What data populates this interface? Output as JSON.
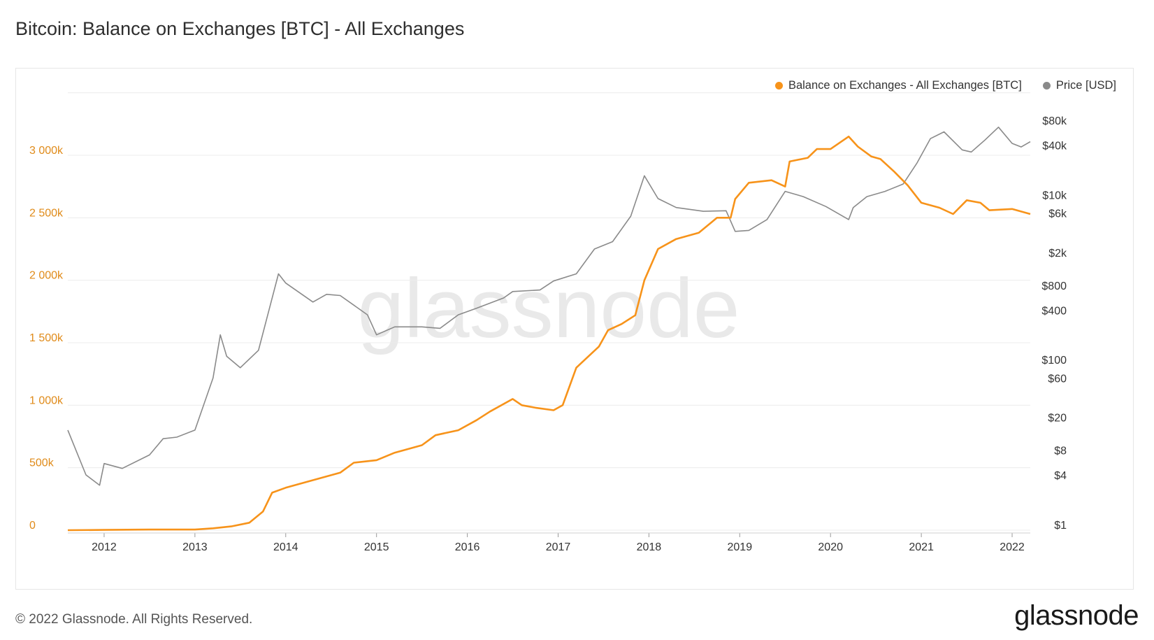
{
  "title": "Bitcoin: Balance on Exchanges [BTC] - All Exchanges",
  "footer": "© 2022 Glassnode. All Rights Reserved.",
  "brand": "glassnode",
  "watermark": "glassnode",
  "colors": {
    "balance": "#f7931a",
    "price": "#8a8a8a",
    "left_axis": "#e08b1a"
  },
  "chart_data": {
    "type": "line",
    "grid": true,
    "legend_position": "top-right",
    "x_ticks": [
      "2012",
      "2013",
      "2014",
      "2015",
      "2016",
      "2017",
      "2018",
      "2019",
      "2020",
      "2021",
      "2022"
    ],
    "left_axis": {
      "ticks": [
        "0",
        "500k",
        "1 000k",
        "1 500k",
        "2 000k",
        "2 500k",
        "3 000k"
      ],
      "tick_values": [
        0,
        500000,
        1000000,
        1500000,
        2000000,
        2500000,
        3000000
      ],
      "range": [
        0,
        3500000
      ]
    },
    "right_axis": {
      "scale": "log",
      "ticks": [
        "$1",
        "$4",
        "$8",
        "$20",
        "$60",
        "$100",
        "$400",
        "$800",
        "$2k",
        "$6k",
        "$10k",
        "$40k",
        "$80k"
      ],
      "tick_values": [
        1,
        4,
        8,
        20,
        60,
        100,
        400,
        800,
        2000,
        6000,
        10000,
        40000,
        80000
      ]
    },
    "series": [
      {
        "name": "Balance on Exchanges - All Exchanges [BTC]",
        "axis": "left",
        "points": [
          [
            2011.6,
            0
          ],
          [
            2012.0,
            2000
          ],
          [
            2012.5,
            5000
          ],
          [
            2013.0,
            5000
          ],
          [
            2013.2,
            15000
          ],
          [
            2013.4,
            30000
          ],
          [
            2013.6,
            60000
          ],
          [
            2013.75,
            150000
          ],
          [
            2013.85,
            300000
          ],
          [
            2014.0,
            340000
          ],
          [
            2014.3,
            400000
          ],
          [
            2014.6,
            460000
          ],
          [
            2014.75,
            540000
          ],
          [
            2015.0,
            560000
          ],
          [
            2015.2,
            620000
          ],
          [
            2015.5,
            680000
          ],
          [
            2015.65,
            760000
          ],
          [
            2015.9,
            800000
          ],
          [
            2016.1,
            880000
          ],
          [
            2016.25,
            950000
          ],
          [
            2016.5,
            1050000
          ],
          [
            2016.6,
            1000000
          ],
          [
            2016.75,
            980000
          ],
          [
            2016.95,
            960000
          ],
          [
            2017.05,
            1000000
          ],
          [
            2017.2,
            1300000
          ],
          [
            2017.45,
            1470000
          ],
          [
            2017.55,
            1600000
          ],
          [
            2017.7,
            1650000
          ],
          [
            2017.85,
            1720000
          ],
          [
            2017.95,
            2000000
          ],
          [
            2018.1,
            2250000
          ],
          [
            2018.3,
            2330000
          ],
          [
            2018.55,
            2380000
          ],
          [
            2018.75,
            2500000
          ],
          [
            2018.9,
            2500000
          ],
          [
            2018.95,
            2650000
          ],
          [
            2019.1,
            2780000
          ],
          [
            2019.35,
            2800000
          ],
          [
            2019.5,
            2750000
          ],
          [
            2019.55,
            2950000
          ],
          [
            2019.75,
            2980000
          ],
          [
            2019.85,
            3050000
          ],
          [
            2020.0,
            3050000
          ],
          [
            2020.2,
            3150000
          ],
          [
            2020.3,
            3070000
          ],
          [
            2020.45,
            2990000
          ],
          [
            2020.55,
            2970000
          ],
          [
            2020.7,
            2870000
          ],
          [
            2020.85,
            2760000
          ],
          [
            2021.0,
            2620000
          ],
          [
            2021.2,
            2580000
          ],
          [
            2021.35,
            2530000
          ],
          [
            2021.5,
            2640000
          ],
          [
            2021.65,
            2620000
          ],
          [
            2021.75,
            2560000
          ],
          [
            2022.0,
            2570000
          ],
          [
            2022.2,
            2530000
          ]
        ]
      },
      {
        "name": "Price [USD]",
        "axis": "right",
        "points": [
          [
            2011.6,
            14
          ],
          [
            2011.8,
            4
          ],
          [
            2011.95,
            3
          ],
          [
            2012.0,
            5.5
          ],
          [
            2012.2,
            4.8
          ],
          [
            2012.5,
            7
          ],
          [
            2012.65,
            11
          ],
          [
            2012.8,
            11.5
          ],
          [
            2013.0,
            14
          ],
          [
            2013.2,
            60
          ],
          [
            2013.28,
            200
          ],
          [
            2013.35,
            110
          ],
          [
            2013.5,
            80
          ],
          [
            2013.7,
            130
          ],
          [
            2013.92,
            1100
          ],
          [
            2014.0,
            850
          ],
          [
            2014.3,
            500
          ],
          [
            2014.45,
            620
          ],
          [
            2014.6,
            600
          ],
          [
            2014.9,
            350
          ],
          [
            2015.0,
            200
          ],
          [
            2015.2,
            250
          ],
          [
            2015.5,
            250
          ],
          [
            2015.7,
            240
          ],
          [
            2015.9,
            350
          ],
          [
            2016.1,
            420
          ],
          [
            2016.4,
            560
          ],
          [
            2016.5,
            670
          ],
          [
            2016.8,
            700
          ],
          [
            2016.95,
            900
          ],
          [
            2017.2,
            1100
          ],
          [
            2017.4,
            2200
          ],
          [
            2017.6,
            2700
          ],
          [
            2017.8,
            5500
          ],
          [
            2017.95,
            17000
          ],
          [
            2018.1,
            9000
          ],
          [
            2018.3,
            7000
          ],
          [
            2018.6,
            6300
          ],
          [
            2018.85,
            6400
          ],
          [
            2018.95,
            3600
          ],
          [
            2019.1,
            3700
          ],
          [
            2019.3,
            5000
          ],
          [
            2019.5,
            11000
          ],
          [
            2019.7,
            9500
          ],
          [
            2019.95,
            7200
          ],
          [
            2020.2,
            5000
          ],
          [
            2020.25,
            7000
          ],
          [
            2020.4,
            9500
          ],
          [
            2020.6,
            11000
          ],
          [
            2020.8,
            13500
          ],
          [
            2020.95,
            24000
          ],
          [
            2021.1,
            48000
          ],
          [
            2021.25,
            58000
          ],
          [
            2021.45,
            35000
          ],
          [
            2021.55,
            33000
          ],
          [
            2021.7,
            46000
          ],
          [
            2021.85,
            66000
          ],
          [
            2022.0,
            42000
          ],
          [
            2022.1,
            38000
          ],
          [
            2022.2,
            44000
          ]
        ]
      }
    ]
  }
}
